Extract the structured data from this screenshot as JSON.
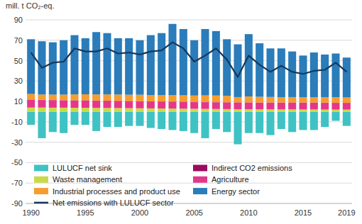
{
  "chart_data": {
    "type": "bar",
    "stacked": true,
    "grid": true,
    "legend": "bottom",
    "y_label": "mill. t CO₂-eq.",
    "categories": [
      "1990",
      null,
      null,
      null,
      null,
      "1995",
      null,
      null,
      null,
      null,
      "2000",
      null,
      null,
      null,
      null,
      "2005",
      null,
      null,
      null,
      null,
      "2010",
      null,
      null,
      null,
      null,
      "2015",
      null,
      null,
      null,
      "2019"
    ],
    "ylim": [
      -90,
      90
    ],
    "yticks": [
      -90,
      -70,
      -50,
      -30,
      -10,
      10,
      30,
      50,
      70,
      90
    ],
    "series": [
      {
        "name": "LULUCF net sink",
        "color": "#3fc2c4",
        "values": [
          -13,
          -26,
          -20,
          -21,
          -13,
          -13,
          -19,
          -15,
          -15,
          -14,
          -14,
          -16,
          -17,
          -18,
          -19,
          -21,
          -26,
          -17,
          -20,
          -32,
          -21,
          -21,
          -23,
          -17,
          -20,
          -18,
          -18,
          -15,
          -9,
          -14
        ]
      },
      {
        "name": "Waste management",
        "color": "#c9d94b",
        "values": [
          4.0,
          4.0,
          3.9,
          3.9,
          3.8,
          3.8,
          3.7,
          3.6,
          3.5,
          3.4,
          3.3,
          3.2,
          3.1,
          3.0,
          2.9,
          2.8,
          2.7,
          2.6,
          2.5,
          2.4,
          2.4,
          2.3,
          2.3,
          2.2,
          2.2,
          2.1,
          2.1,
          2.0,
          2.0,
          2.0
        ]
      },
      {
        "name": "Agriculture",
        "color": "#e5378a",
        "values": [
          7.5,
          7.3,
          7.2,
          7.0,
          7.0,
          7.0,
          6.9,
          6.9,
          6.8,
          6.7,
          6.7,
          6.6,
          6.6,
          6.6,
          6.5,
          6.5,
          6.5,
          6.4,
          6.4,
          6.4,
          6.5,
          6.5,
          6.5,
          6.5,
          6.6,
          6.6,
          6.6,
          6.6,
          6.5,
          6.5
        ]
      },
      {
        "name": "Indirect CO2 emissions",
        "color": "#9c0a5e",
        "values": [
          0.3,
          0.3,
          0.3,
          0.3,
          0.3,
          0.3,
          0.3,
          0.3,
          0.3,
          0.3,
          0.3,
          0.3,
          0.3,
          0.3,
          0.3,
          0.3,
          0.3,
          0.3,
          0.3,
          0.3,
          0.2,
          0.2,
          0.2,
          0.2,
          0.2,
          0.2,
          0.2,
          0.2,
          0.2,
          0.2
        ]
      },
      {
        "name": "Industrial processes and product use",
        "color": "#f59d2e",
        "values": [
          5.5,
          5.2,
          5.3,
          5.5,
          5.8,
          5.9,
          6.0,
          6.1,
          6.2,
          6.2,
          6.3,
          6.1,
          6.2,
          6.3,
          6.3,
          6.2,
          6.4,
          6.5,
          6.3,
          5.2,
          5.8,
          5.6,
          5.4,
          5.3,
          5.3,
          5.2,
          5.3,
          5.4,
          5.4,
          5.2
        ]
      },
      {
        "name": "Energy sector",
        "color": "#2a7cba",
        "values": [
          53.7,
          52.2,
          51.3,
          53.3,
          58.1,
          55.0,
          61.1,
          60.1,
          55.2,
          55.4,
          53.4,
          58.8,
          60.8,
          69.8,
          65.0,
          54.2,
          65.1,
          63.2,
          55.5,
          51.7,
          61.1,
          52.4,
          47.6,
          47.8,
          44.7,
          40.9,
          43.8,
          41.8,
          42.9,
          39.1
        ]
      },
      {
        "name": "Net emissions with LULUCF sector",
        "color": "#17385a",
        "type": "line",
        "values": [
          58,
          43,
          48,
          49,
          62,
          59,
          59,
          62,
          57,
          58,
          56,
          59,
          60,
          68,
          62,
          49,
          55,
          62,
          51,
          34,
          55,
          46,
          39,
          45,
          39,
          37,
          40,
          41,
          48,
          39
        ]
      }
    ]
  }
}
